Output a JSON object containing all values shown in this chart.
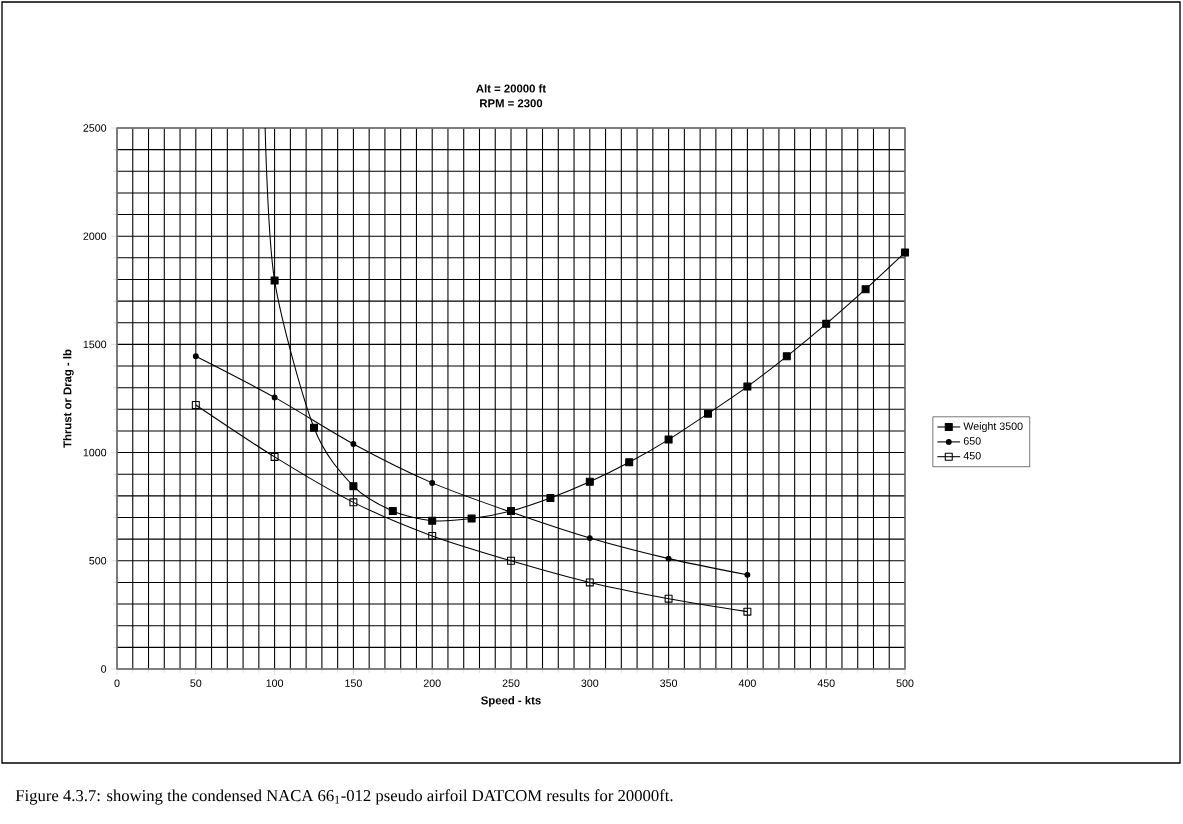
{
  "chart_data": {
    "type": "line",
    "title": "Alt = 20000 ft",
    "subtitle": "RPM = 2300",
    "xlabel": "Speed  -  kts",
    "ylabel": "Thrust or Drag  - lb",
    "xlim": [
      0,
      500
    ],
    "xticks": [
      0,
      50,
      100,
      150,
      200,
      250,
      300,
      350,
      400,
      450,
      500
    ],
    "ylim": [
      0,
      2500
    ],
    "yticks": [
      0,
      500,
      1000,
      1500,
      2000,
      2500
    ],
    "grid": true,
    "legend": "right",
    "series": [
      {
        "name": "Weight 3500",
        "color": "#000000",
        "marker": "square",
        "x": [
          94,
          100,
          125,
          150,
          175,
          200,
          225,
          250,
          275,
          300,
          325,
          350,
          375,
          400,
          425,
          450,
          475,
          500
        ],
        "values": [
          2500,
          1795,
          1115,
          845,
          730,
          685,
          695,
          730,
          790,
          865,
          955,
          1060,
          1180,
          1305,
          1445,
          1595,
          1755,
          1925
        ]
      },
      {
        "name": "650",
        "color": "#000000",
        "marker": "circle",
        "x": [
          50,
          100,
          150,
          200,
          250,
          300,
          350,
          400
        ],
        "values": [
          1445,
          1255,
          1040,
          860,
          725,
          605,
          510,
          435
        ]
      },
      {
        "name": "450",
        "color": "#000000",
        "marker": "square",
        "x": [
          50,
          100,
          150,
          200,
          250,
          300,
          350,
          400
        ],
        "values": [
          1220,
          980,
          770,
          615,
          500,
          400,
          325,
          265
        ]
      }
    ],
    "annotations": [
      "Figure 4.3.7: showing the condensed NACA 66$_{1}$-012 pseudo airfoil DATCOM results for 20000ft."
    ]
  }
}
